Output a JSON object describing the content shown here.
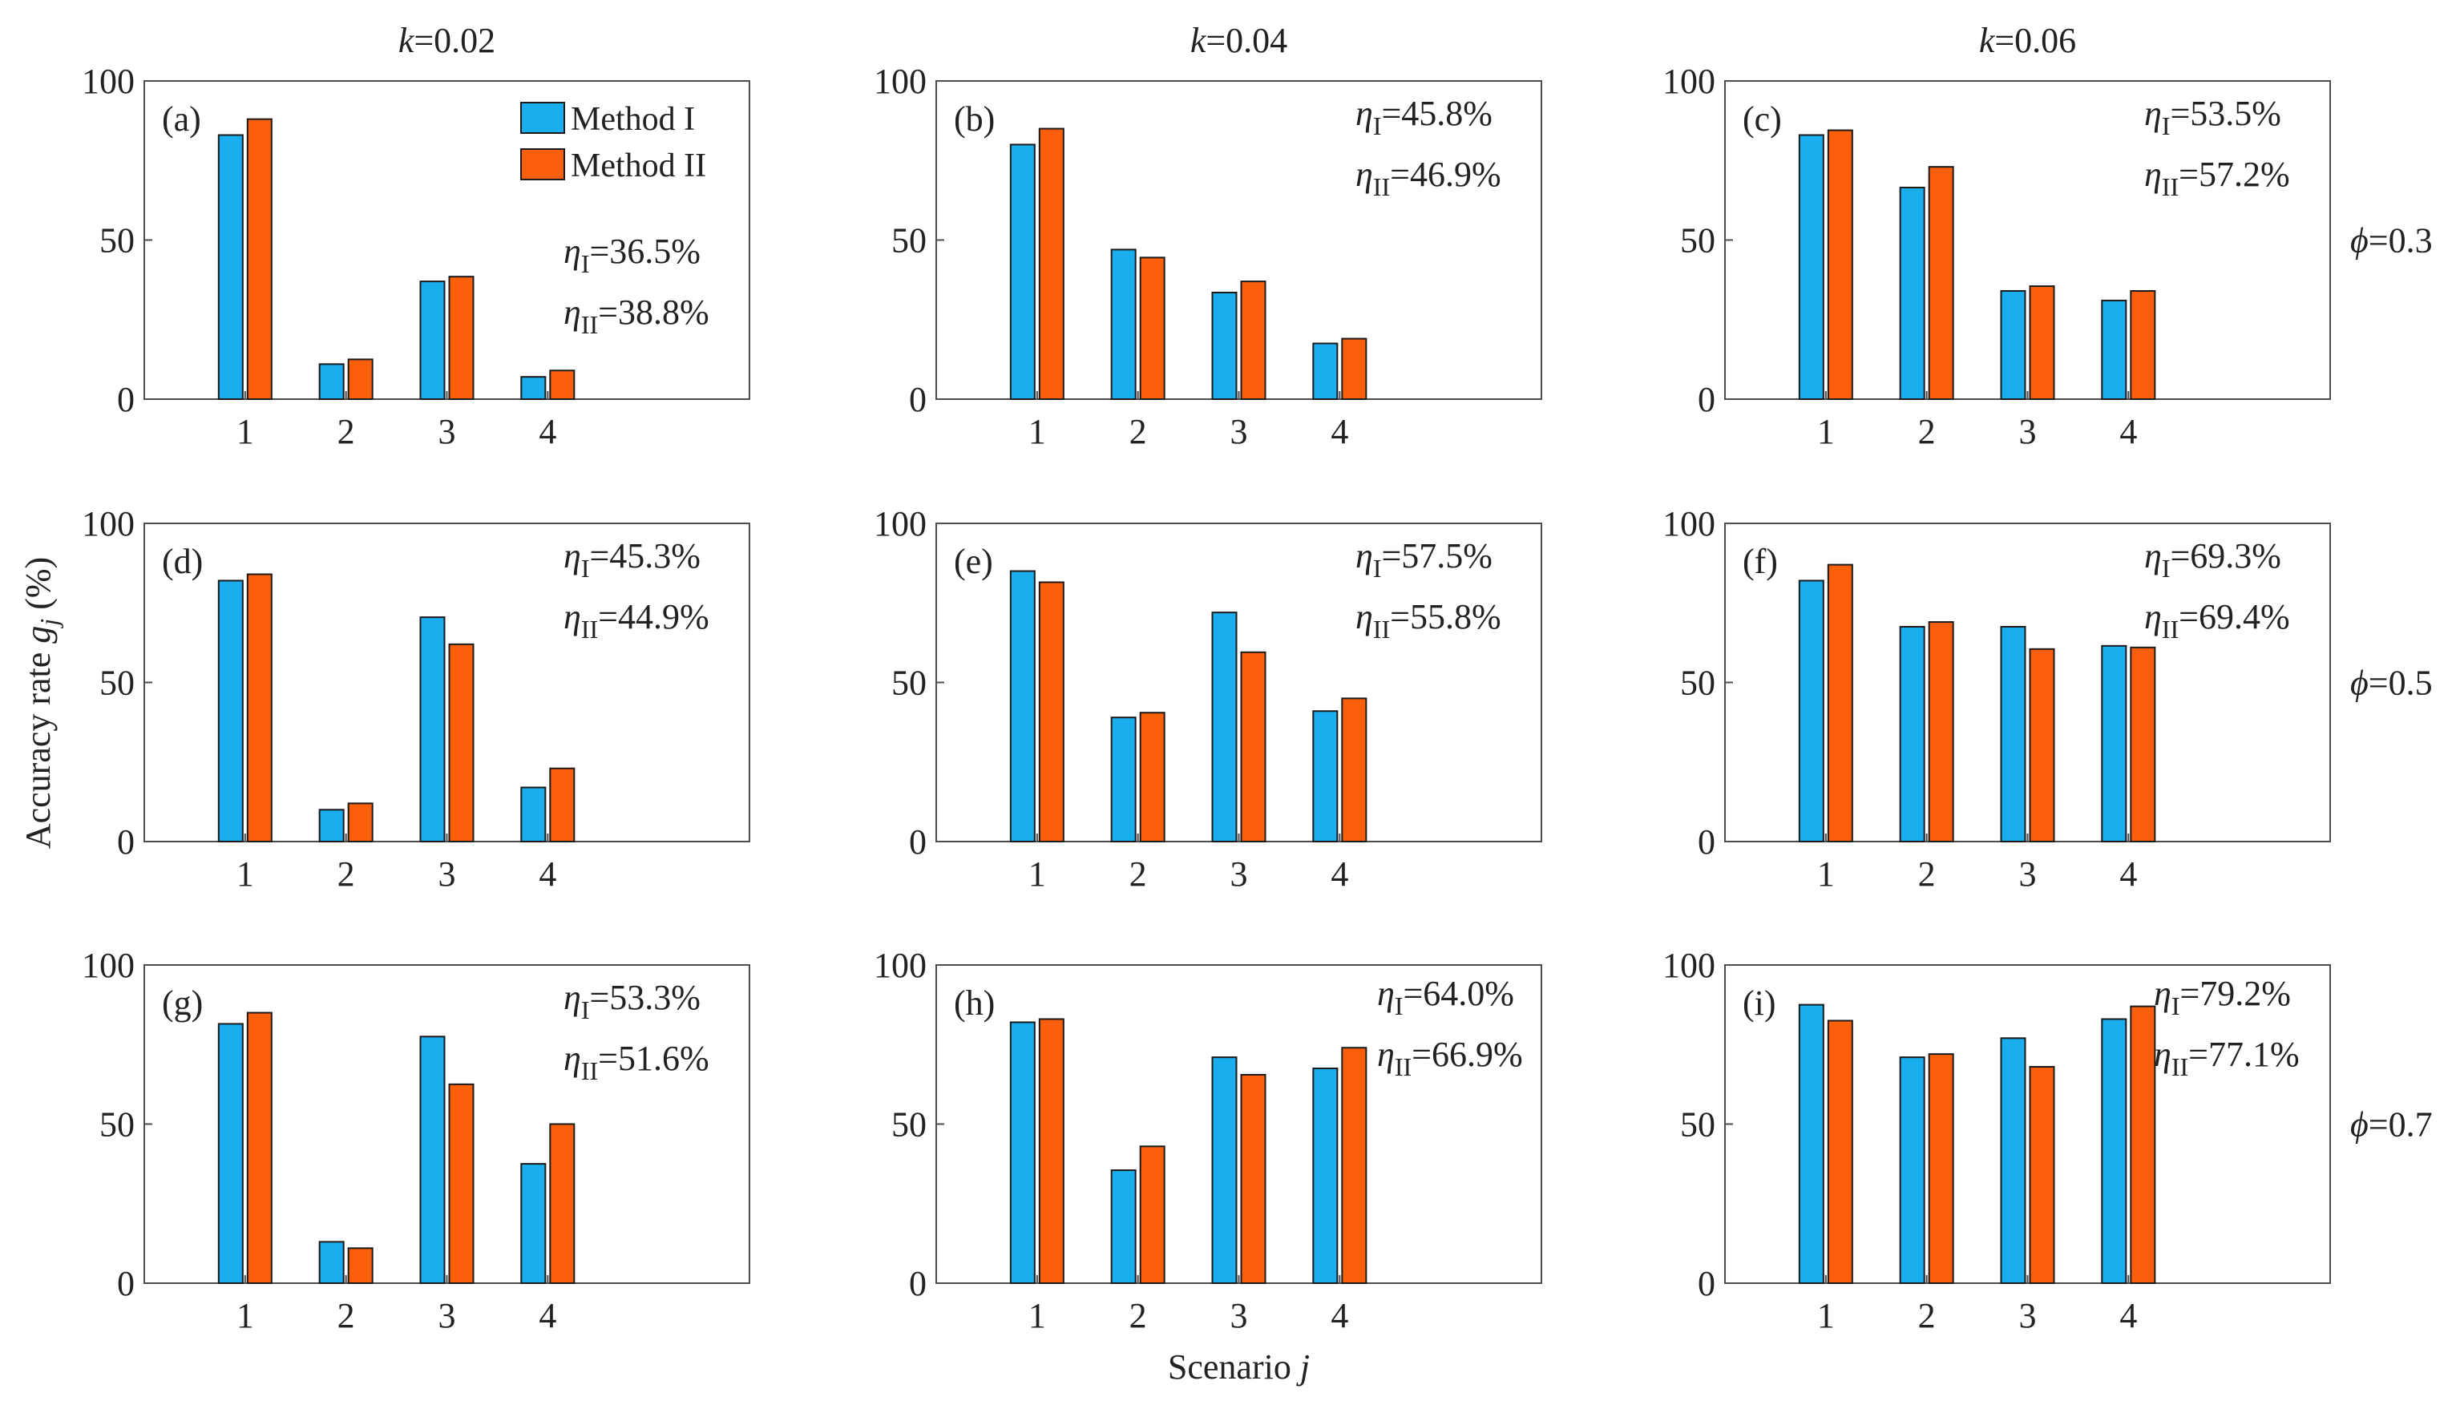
{
  "figure": {
    "columns": [
      {
        "var": "k",
        "value": "=0.02"
      },
      {
        "var": "k",
        "value": "=0.04"
      },
      {
        "var": "k",
        "value": "=0.06"
      }
    ],
    "rows": [
      {
        "var": "ϕ",
        "value": "=0.3"
      },
      {
        "var": "ϕ",
        "value": "=0.5"
      },
      {
        "var": "ϕ",
        "value": "=0.7"
      }
    ],
    "ylabel": {
      "text": "Accuracy rate ",
      "symbol": "g",
      "sub": "j",
      "unit": " (%)"
    },
    "xlabel": {
      "text": "Scenario ",
      "symbol": "j"
    },
    "legend": {
      "items": [
        "Method I",
        "Method II"
      ],
      "placement": "top-right of panel (a)"
    },
    "eta_symbol": "η",
    "colors": {
      "method1": "#1aaeef",
      "method2": "#fc5f0c",
      "axis": "#4d4d4d"
    }
  },
  "chart_data": [
    {
      "type": "bar",
      "panel": "(a)",
      "categories": [
        "1",
        "2",
        "3",
        "4"
      ],
      "ylim": [
        0,
        100
      ],
      "yticks": [
        0,
        50,
        100
      ],
      "series": [
        {
          "name": "Method I",
          "values": [
            83,
            11,
            37,
            7
          ]
        },
        {
          "name": "Method II",
          "values": [
            88,
            12.5,
            38.5,
            9
          ]
        }
      ],
      "annotations": [
        {
          "label": "I",
          "value": "=36.5%"
        },
        {
          "label": "II",
          "value": "=38.8%"
        }
      ],
      "legend": true
    },
    {
      "type": "bar",
      "panel": "(b)",
      "categories": [
        "1",
        "2",
        "3",
        "4"
      ],
      "ylim": [
        0,
        100
      ],
      "yticks": [
        0,
        50,
        100
      ],
      "series": [
        {
          "name": "Method I",
          "values": [
            80,
            47,
            33.5,
            17.5
          ]
        },
        {
          "name": "Method II",
          "values": [
            85,
            44.5,
            37,
            19
          ]
        }
      ],
      "annotations": [
        {
          "label": "I",
          "value": "=45.8%"
        },
        {
          "label": "II",
          "value": "=46.9%"
        }
      ]
    },
    {
      "type": "bar",
      "panel": "(c)",
      "categories": [
        "1",
        "2",
        "3",
        "4"
      ],
      "ylim": [
        0,
        100
      ],
      "yticks": [
        0,
        50,
        100
      ],
      "series": [
        {
          "name": "Method I",
          "values": [
            83,
            66.5,
            34,
            31
          ]
        },
        {
          "name": "Method II",
          "values": [
            84.5,
            73,
            35.5,
            34
          ]
        }
      ],
      "annotations": [
        {
          "label": "I",
          "value": "=53.5%"
        },
        {
          "label": "II",
          "value": "=57.2%"
        }
      ]
    },
    {
      "type": "bar",
      "panel": "(d)",
      "categories": [
        "1",
        "2",
        "3",
        "4"
      ],
      "ylim": [
        0,
        100
      ],
      "yticks": [
        0,
        50,
        100
      ],
      "series": [
        {
          "name": "Method I",
          "values": [
            82,
            10,
            70.5,
            17
          ]
        },
        {
          "name": "Method II",
          "values": [
            84,
            12,
            62,
            23
          ]
        }
      ],
      "annotations": [
        {
          "label": "I",
          "value": "=45.3%"
        },
        {
          "label": "II",
          "value": "=44.9%"
        }
      ]
    },
    {
      "type": "bar",
      "panel": "(e)",
      "categories": [
        "1",
        "2",
        "3",
        "4"
      ],
      "ylim": [
        0,
        100
      ],
      "yticks": [
        0,
        50,
        100
      ],
      "series": [
        {
          "name": "Method I",
          "values": [
            85,
            39,
            72,
            41
          ]
        },
        {
          "name": "Method II",
          "values": [
            81.5,
            40.5,
            59.5,
            45
          ]
        }
      ],
      "annotations": [
        {
          "label": "I",
          "value": "=57.5%"
        },
        {
          "label": "II",
          "value": "=55.8%"
        }
      ]
    },
    {
      "type": "bar",
      "panel": "(f)",
      "categories": [
        "1",
        "2",
        "3",
        "4"
      ],
      "ylim": [
        0,
        100
      ],
      "yticks": [
        0,
        50,
        100
      ],
      "series": [
        {
          "name": "Method I",
          "values": [
            82,
            67.5,
            67.5,
            61.5
          ]
        },
        {
          "name": "Method II",
          "values": [
            87,
            69,
            60.5,
            61
          ]
        }
      ],
      "annotations": [
        {
          "label": "I",
          "value": "=69.3%"
        },
        {
          "label": "II",
          "value": "=69.4%"
        }
      ]
    },
    {
      "type": "bar",
      "panel": "(g)",
      "categories": [
        "1",
        "2",
        "3",
        "4"
      ],
      "ylim": [
        0,
        100
      ],
      "yticks": [
        0,
        50,
        100
      ],
      "series": [
        {
          "name": "Method I",
          "values": [
            81.5,
            13,
            77.5,
            37.5
          ]
        },
        {
          "name": "Method II",
          "values": [
            85,
            11,
            62.5,
            50
          ]
        }
      ],
      "annotations": [
        {
          "label": "I",
          "value": "=53.3%"
        },
        {
          "label": "II",
          "value": "=51.6%"
        }
      ]
    },
    {
      "type": "bar",
      "panel": "(h)",
      "categories": [
        "1",
        "2",
        "3",
        "4"
      ],
      "ylim": [
        0,
        100
      ],
      "yticks": [
        0,
        50,
        100
      ],
      "series": [
        {
          "name": "Method I",
          "values": [
            82,
            35.5,
            71,
            67.5
          ]
        },
        {
          "name": "Method II",
          "values": [
            83,
            43,
            65.5,
            74
          ]
        }
      ],
      "annotations": [
        {
          "label": "I",
          "value": "=64.0%"
        },
        {
          "label": "II",
          "value": "=66.9%"
        }
      ]
    },
    {
      "type": "bar",
      "panel": "(i)",
      "categories": [
        "1",
        "2",
        "3",
        "4"
      ],
      "ylim": [
        0,
        100
      ],
      "yticks": [
        0,
        50,
        100
      ],
      "series": [
        {
          "name": "Method I",
          "values": [
            87.5,
            71,
            77,
            83
          ]
        },
        {
          "name": "Method II",
          "values": [
            82.5,
            72,
            68,
            87
          ]
        }
      ],
      "annotations": [
        {
          "label": "I",
          "value": "=79.2%"
        },
        {
          "label": "II",
          "value": "=77.1%"
        }
      ]
    }
  ]
}
